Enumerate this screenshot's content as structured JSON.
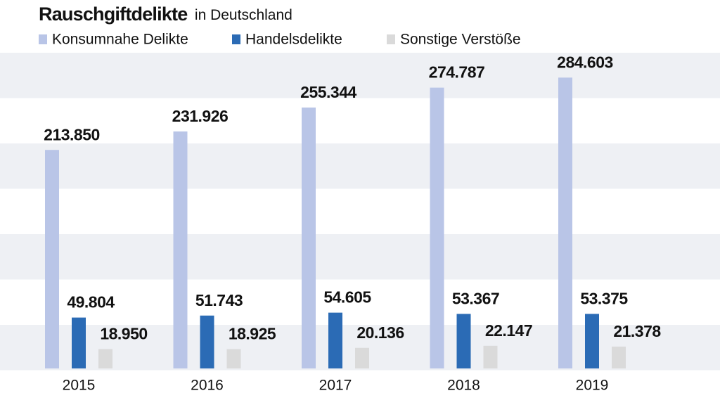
{
  "chart_data": {
    "type": "bar",
    "title": "Rauschgiftdelikte",
    "subtitle": "in Deutschland",
    "categories": [
      "2015",
      "2016",
      "2017",
      "2018",
      "2019"
    ],
    "series": [
      {
        "name": "Konsumnahe Delikte",
        "color": "#b9c5e7",
        "values": [
          213850,
          231926,
          255344,
          274787,
          284603
        ],
        "value_labels": [
          "213.850",
          "231.926",
          "255.344",
          "274.787",
          "284.603"
        ]
      },
      {
        "name": "Handelsdelikte",
        "color": "#2b6bb5",
        "values": [
          49804,
          51743,
          54605,
          53367,
          53375
        ],
        "value_labels": [
          "49.804",
          "51.743",
          "54.605",
          "53.367",
          "53.375"
        ]
      },
      {
        "name": "Sonstige Verstöße",
        "color": "#dadada",
        "values": [
          18950,
          18925,
          20136,
          22147,
          21378
        ],
        "value_labels": [
          "18.950",
          "18.925",
          "20.136",
          "22.147",
          "21.378"
        ]
      }
    ],
    "ylim": [
      0,
      300000
    ]
  }
}
